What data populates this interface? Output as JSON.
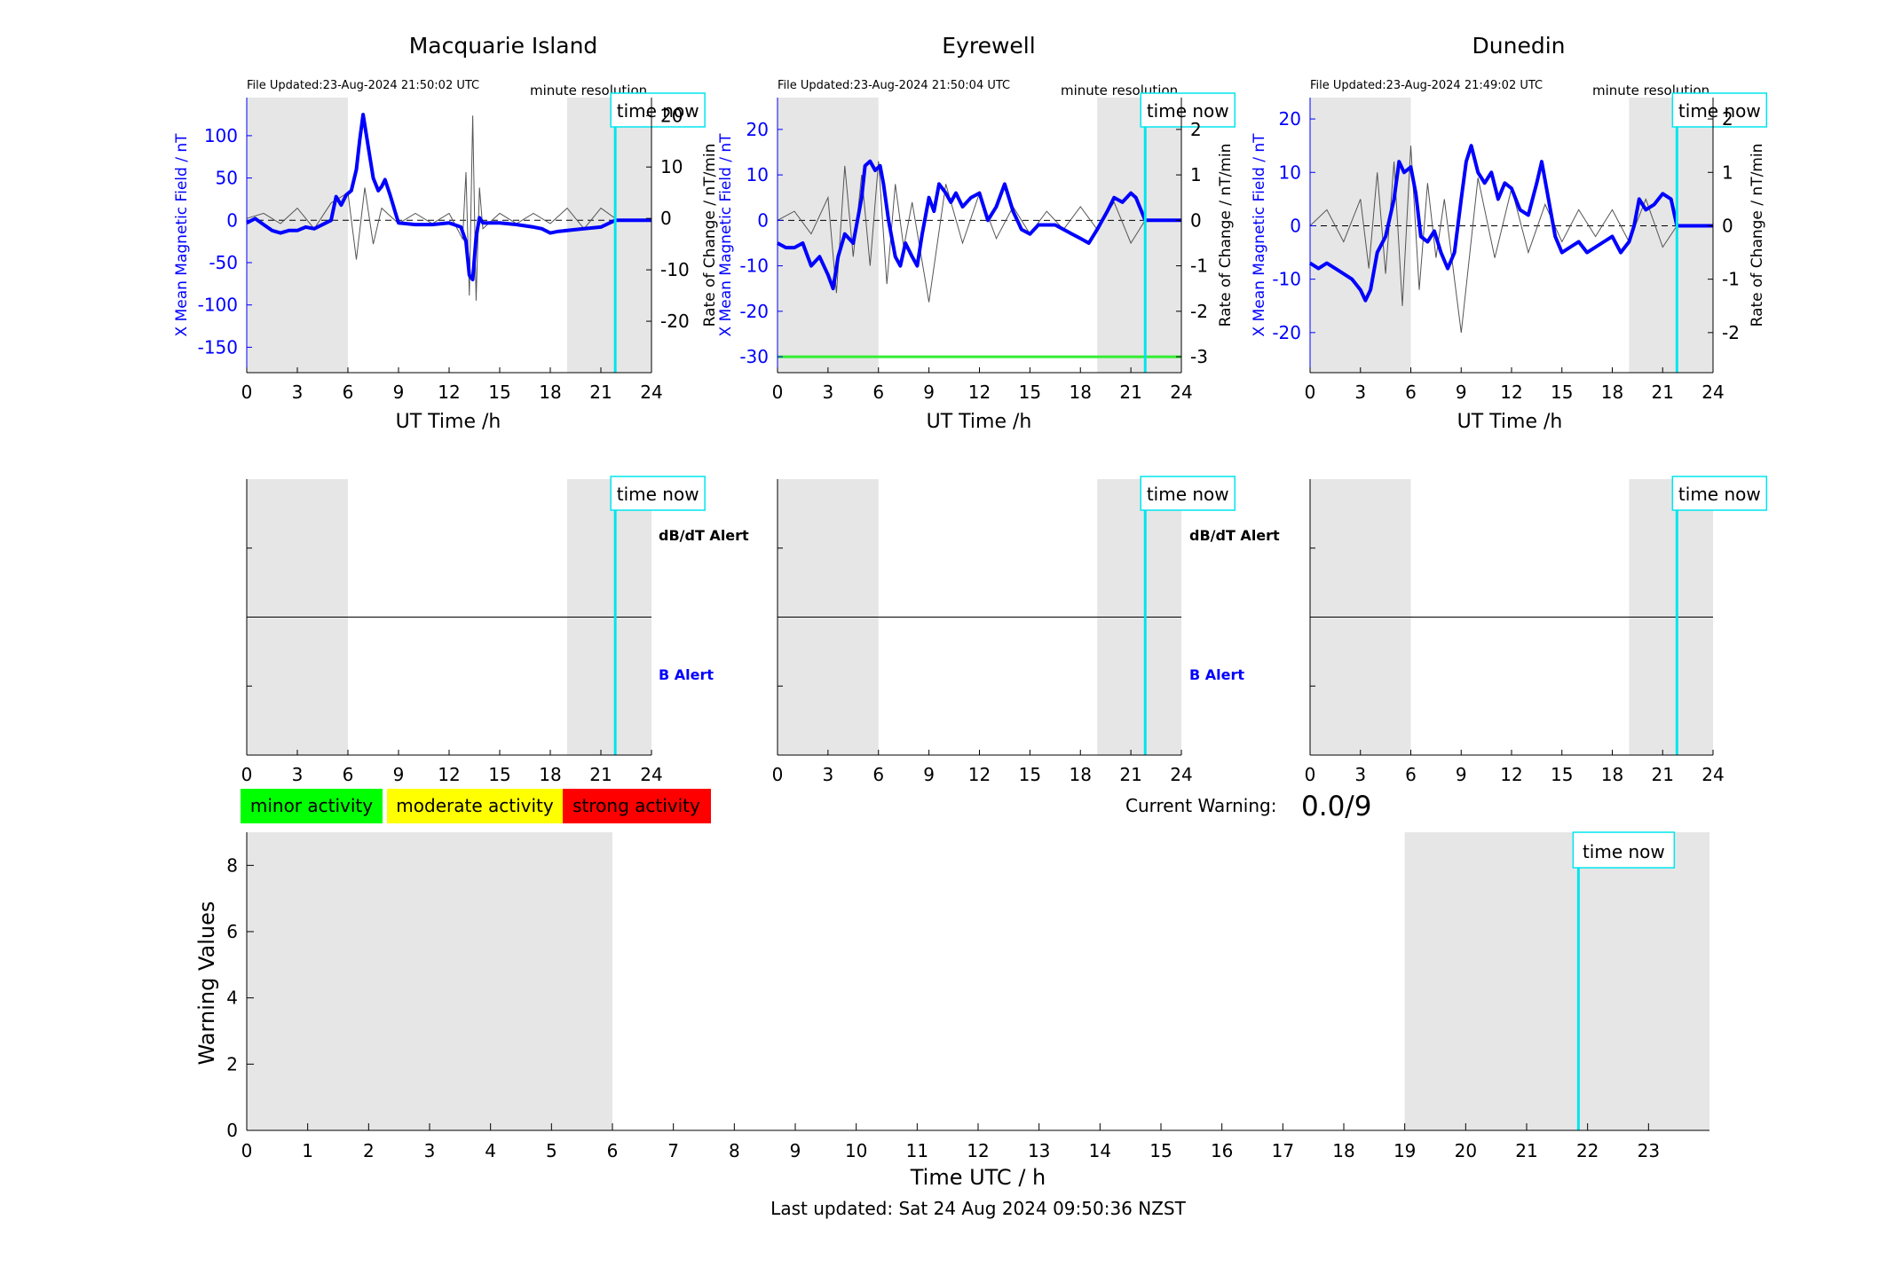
{
  "colors": {
    "b_line": "#0000ff",
    "dbdt_line": "#555555",
    "time_now": "#00e5ee",
    "shade": "#e6e6e6",
    "minor": "#00ff00",
    "moderate": "#ffff00",
    "strong": "#ff0000",
    "eyrewell_threshold": "#33ee33"
  },
  "common": {
    "resolution_label": "minute resolution",
    "time_now_label": "time now",
    "x_label": "UT Time /h",
    "y_left_label": "X Mean Magnetic Field / nT",
    "y_right_label": "Rate of Change / nT/min",
    "dbdt_alert_label": "dB/dT Alert",
    "b_alert_label": "B Alert"
  },
  "legend": {
    "minor": "minor activity",
    "moderate": "moderate activity",
    "strong": "strong activity"
  },
  "warning": {
    "label": "Current Warning:",
    "value": "0.0/9"
  },
  "footer": {
    "last_updated": "Last updated: Sat 24 Aug 2024 09:50:36 NZST"
  },
  "chart_data": [
    {
      "type": "line",
      "station": "Macquarie Island",
      "title": "Macquarie Island",
      "file_updated": "File Updated:23-Aug-2024 21:50:02 UTC",
      "xlim": [
        0,
        24
      ],
      "ylim": [
        -180,
        145
      ],
      "yticks": [
        -150,
        -100,
        -50,
        0,
        50,
        100
      ],
      "y2lim": [
        -30,
        23.5
      ],
      "y2ticks": [
        -20,
        -10,
        0,
        10,
        20
      ],
      "shaded_hours": [
        [
          0,
          6
        ],
        [
          19,
          24
        ]
      ],
      "time_now": 21.85,
      "series": [
        {
          "x": [
            0,
            0.5,
            1,
            1.5,
            2,
            2.5,
            3,
            3.5,
            4,
            4.5,
            5,
            5.3,
            5.6,
            5.9,
            6.2,
            6.5,
            6.7,
            6.9,
            7.1,
            7.3,
            7.5,
            7.8,
            8.0,
            8.2,
            8.5,
            8.8,
            9,
            10,
            11,
            12,
            12.7,
            13.0,
            13.2,
            13.4,
            13.6,
            13.8,
            14,
            14.5,
            15,
            16,
            17,
            17.5,
            18,
            18.5,
            19,
            20,
            21,
            21.85,
            24
          ],
          "values": [
            -3,
            2,
            -5,
            -12,
            -15,
            -12,
            -12,
            -8,
            -10,
            -5,
            0,
            28,
            18,
            30,
            35,
            60,
            95,
            125,
            100,
            75,
            50,
            35,
            40,
            48,
            30,
            10,
            -3,
            -5,
            -5,
            -3,
            -8,
            -25,
            -65,
            -70,
            -20,
            3,
            -3,
            -3,
            -3,
            -5,
            -8,
            -10,
            -15,
            -13,
            -12,
            -10,
            -8,
            0,
            0
          ]
        },
        {
          "x": [
            0,
            1,
            2,
            3,
            4,
            5,
            6,
            6.5,
            7,
            7.5,
            8,
            9,
            10,
            11,
            12,
            12.8,
            13,
            13.2,
            13.4,
            13.6,
            13.8,
            14,
            15,
            16,
            17,
            18,
            19,
            20,
            21,
            21.85
          ],
          "values": [
            0,
            1,
            -1,
            2,
            -2,
            3,
            5,
            -8,
            6,
            -5,
            2,
            -1,
            1,
            -1,
            1,
            -4,
            9,
            -15,
            20,
            -16,
            6,
            -2,
            1,
            -1,
            1,
            -1,
            2,
            -2,
            2,
            0
          ]
        }
      ]
    },
    {
      "type": "line",
      "station": "Eyrewell",
      "title": "Eyrewell",
      "file_updated": "File Updated:23-Aug-2024 21:50:04 UTC",
      "xlim": [
        0,
        24
      ],
      "ylim": [
        -33.5,
        27
      ],
      "yticks": [
        -30,
        -20,
        -10,
        0,
        10,
        20
      ],
      "y2lim": [
        -3.35,
        2.7
      ],
      "y2ticks": [
        -3,
        -2,
        -1,
        0,
        1,
        2
      ],
      "threshold": -30,
      "shaded_hours": [
        [
          0,
          6
        ],
        [
          19,
          24
        ]
      ],
      "time_now": 21.85,
      "series": [
        {
          "x": [
            0,
            0.5,
            1,
            1.5,
            2,
            2.5,
            3,
            3.3,
            3.6,
            4,
            4.5,
            5,
            5.2,
            5.5,
            5.8,
            6.1,
            6.3,
            6.6,
            7,
            7.3,
            7.6,
            8,
            8.3,
            8.6,
            9,
            9.3,
            9.6,
            10,
            10.3,
            10.6,
            11,
            11.5,
            12,
            12.5,
            13,
            13.5,
            14,
            14.5,
            15,
            15.5,
            16,
            16.5,
            17,
            17.5,
            18,
            18.5,
            19,
            19.3,
            19.6,
            20,
            20.5,
            21,
            21.3,
            21.85,
            24
          ],
          "values": [
            -5,
            -6,
            -6,
            -5,
            -10,
            -8,
            -12,
            -15,
            -8,
            -3,
            -5,
            5,
            12,
            13,
            11,
            12,
            8,
            0,
            -8,
            -10,
            -5,
            -8,
            -10,
            -3,
            5,
            2,
            8,
            6,
            4,
            6,
            3,
            5,
            6,
            0,
            3,
            8,
            2,
            -2,
            -3,
            -1,
            -1,
            -1,
            -2,
            -3,
            -4,
            -5,
            -2,
            0,
            2,
            5,
            4,
            6,
            5,
            0,
            0
          ]
        },
        {
          "x": [
            0,
            1,
            2,
            3,
            3.5,
            4,
            4.5,
            5,
            5.5,
            6,
            6.5,
            7,
            7.5,
            8,
            9,
            10,
            11,
            12,
            13,
            14,
            15,
            16,
            17,
            18,
            19,
            20,
            21,
            21.85
          ],
          "values": [
            0,
            0.2,
            -0.3,
            0.5,
            -1.6,
            1.2,
            -0.8,
            1.0,
            -1.0,
            1.3,
            -1.4,
            0.8,
            -0.6,
            0.4,
            -1.8,
            0.8,
            -0.5,
            0.6,
            -0.4,
            0.3,
            -0.3,
            0.2,
            -0.2,
            0.3,
            -0.2,
            0.4,
            -0.5,
            0
          ]
        }
      ]
    },
    {
      "type": "line",
      "station": "Dunedin",
      "title": "Dunedin",
      "file_updated": "File Updated:23-Aug-2024 21:49:02 UTC",
      "xlim": [
        0,
        24
      ],
      "ylim": [
        -27.5,
        24
      ],
      "yticks": [
        -20,
        -10,
        0,
        10,
        20
      ],
      "y2lim": [
        -2.75,
        2.4
      ],
      "y2ticks": [
        -2,
        -1,
        0,
        1,
        2
      ],
      "shaded_hours": [
        [
          0,
          6
        ],
        [
          19,
          24
        ]
      ],
      "time_now": 21.85,
      "series": [
        {
          "x": [
            0,
            0.5,
            1,
            1.5,
            2,
            2.5,
            3,
            3.3,
            3.6,
            4,
            4.5,
            5,
            5.3,
            5.6,
            6,
            6.3,
            6.6,
            7,
            7.4,
            7.8,
            8.2,
            8.6,
            9,
            9.3,
            9.6,
            10,
            10.4,
            10.8,
            11.2,
            11.6,
            12,
            12.5,
            13,
            13.5,
            13.8,
            14.2,
            14.6,
            15,
            15.5,
            16,
            16.5,
            17,
            17.5,
            18,
            18.5,
            19,
            19.3,
            19.6,
            20,
            20.5,
            21,
            21.5,
            21.85,
            24
          ],
          "values": [
            -7,
            -8,
            -7,
            -8,
            -9,
            -10,
            -12,
            -14,
            -12,
            -5,
            -2,
            5,
            12,
            10,
            11,
            6,
            -2,
            -3,
            -1,
            -5,
            -8,
            -5,
            5,
            12,
            15,
            10,
            8,
            10,
            5,
            8,
            7,
            3,
            2,
            8,
            12,
            5,
            -2,
            -5,
            -4,
            -3,
            -5,
            -4,
            -3,
            -2,
            -5,
            -3,
            0,
            5,
            3,
            4,
            6,
            5,
            0,
            0
          ]
        },
        {
          "x": [
            0,
            1,
            2,
            3,
            3.5,
            4,
            4.5,
            5,
            5.5,
            6,
            6.5,
            7,
            7.5,
            8,
            9,
            10,
            11,
            12,
            13,
            14,
            15,
            16,
            17,
            18,
            19,
            20,
            21,
            21.85
          ],
          "values": [
            0,
            0.3,
            -0.3,
            0.5,
            -0.8,
            1.0,
            -0.9,
            1.2,
            -1.5,
            1.5,
            -1.2,
            0.8,
            -0.6,
            0.5,
            -2.0,
            0.9,
            -0.6,
            0.7,
            -0.5,
            0.4,
            -0.3,
            0.3,
            -0.2,
            0.3,
            -0.3,
            0.5,
            -0.4,
            0
          ]
        }
      ]
    },
    {
      "type": "line",
      "title": "",
      "xlabel": "Time UTC / h",
      "ylabel": "Warning Values",
      "xlim": [
        0,
        24
      ],
      "xticks": [
        0,
        1,
        2,
        3,
        4,
        5,
        6,
        7,
        8,
        9,
        10,
        11,
        12,
        13,
        14,
        15,
        16,
        17,
        18,
        19,
        20,
        21,
        22,
        23
      ],
      "ylim": [
        0,
        9
      ],
      "yticks": [
        0,
        2,
        4,
        6,
        8
      ],
      "shaded_hours": [
        [
          0,
          6
        ],
        [
          19,
          24
        ]
      ],
      "time_now": 21.85,
      "series": []
    }
  ]
}
